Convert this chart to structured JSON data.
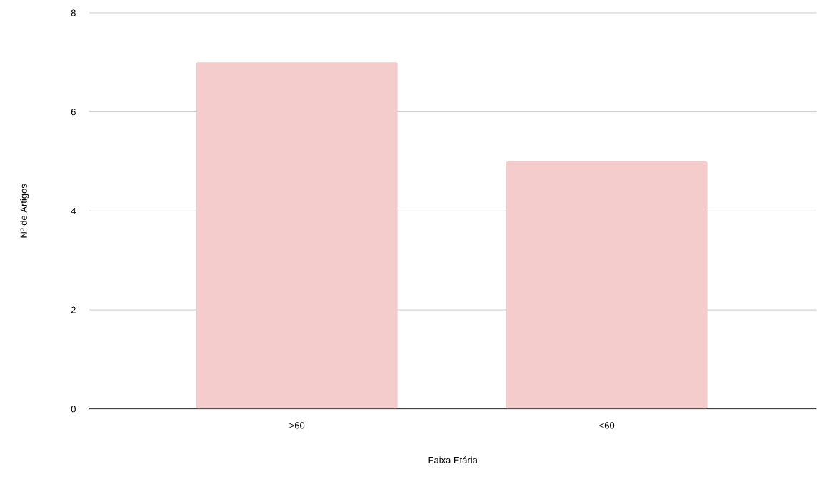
{
  "chart_data": {
    "type": "bar",
    "xlabel": "Faixa Etária",
    "ylabel": "Nº de Artigos",
    "categories": [
      ">60",
      "<60"
    ],
    "values": [
      7,
      5
    ],
    "color": "#f4cccc",
    "ylim": [
      0,
      8
    ],
    "yticks": [
      0,
      2,
      4,
      6,
      8
    ],
    "grid": "y"
  }
}
